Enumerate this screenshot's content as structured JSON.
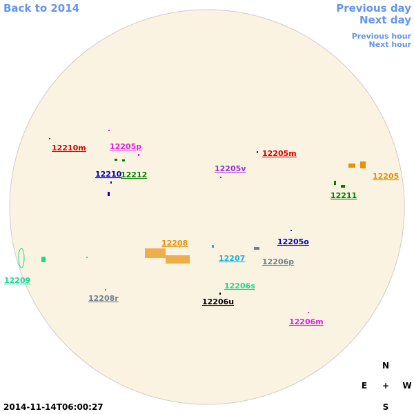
{
  "navigation": {
    "back": "Back to 2014",
    "previous_day": "Previous day",
    "next_day": "Next day",
    "previous_hour": "Previous hour",
    "next_hour": "Next hour"
  },
  "regions": [
    {
      "label": "12210m",
      "color": "#e00000"
    },
    {
      "label": "12205p",
      "color": "#e020e0"
    },
    {
      "label": "12210",
      "color": "#0000cc"
    },
    {
      "label": "12212",
      "color": "#008000"
    },
    {
      "label": "12205v",
      "color": "#9932cc"
    },
    {
      "label": "12205m",
      "color": "#e00000"
    },
    {
      "label": "12205",
      "color": "#e8900a"
    },
    {
      "label": "12211",
      "color": "#008000"
    },
    {
      "label": "12208",
      "color": "#e8900a"
    },
    {
      "label": "12205o",
      "color": "#0000cc"
    },
    {
      "label": "12207",
      "color": "#1ab0e0"
    },
    {
      "label": "12206p",
      "color": "#708090"
    },
    {
      "label": "12209",
      "color": "#1ad88c"
    },
    {
      "label": "12206s",
      "color": "#1ad88c"
    },
    {
      "label": "12208r",
      "color": "#708090"
    },
    {
      "label": "12206u",
      "color": "#000000"
    },
    {
      "label": "12206m",
      "color": "#e020e0"
    }
  ],
  "compass": {
    "north": "N",
    "east": "E",
    "center": "+",
    "west": "W",
    "south": "S"
  },
  "timestamp": "2014-11-14T06:00:27"
}
